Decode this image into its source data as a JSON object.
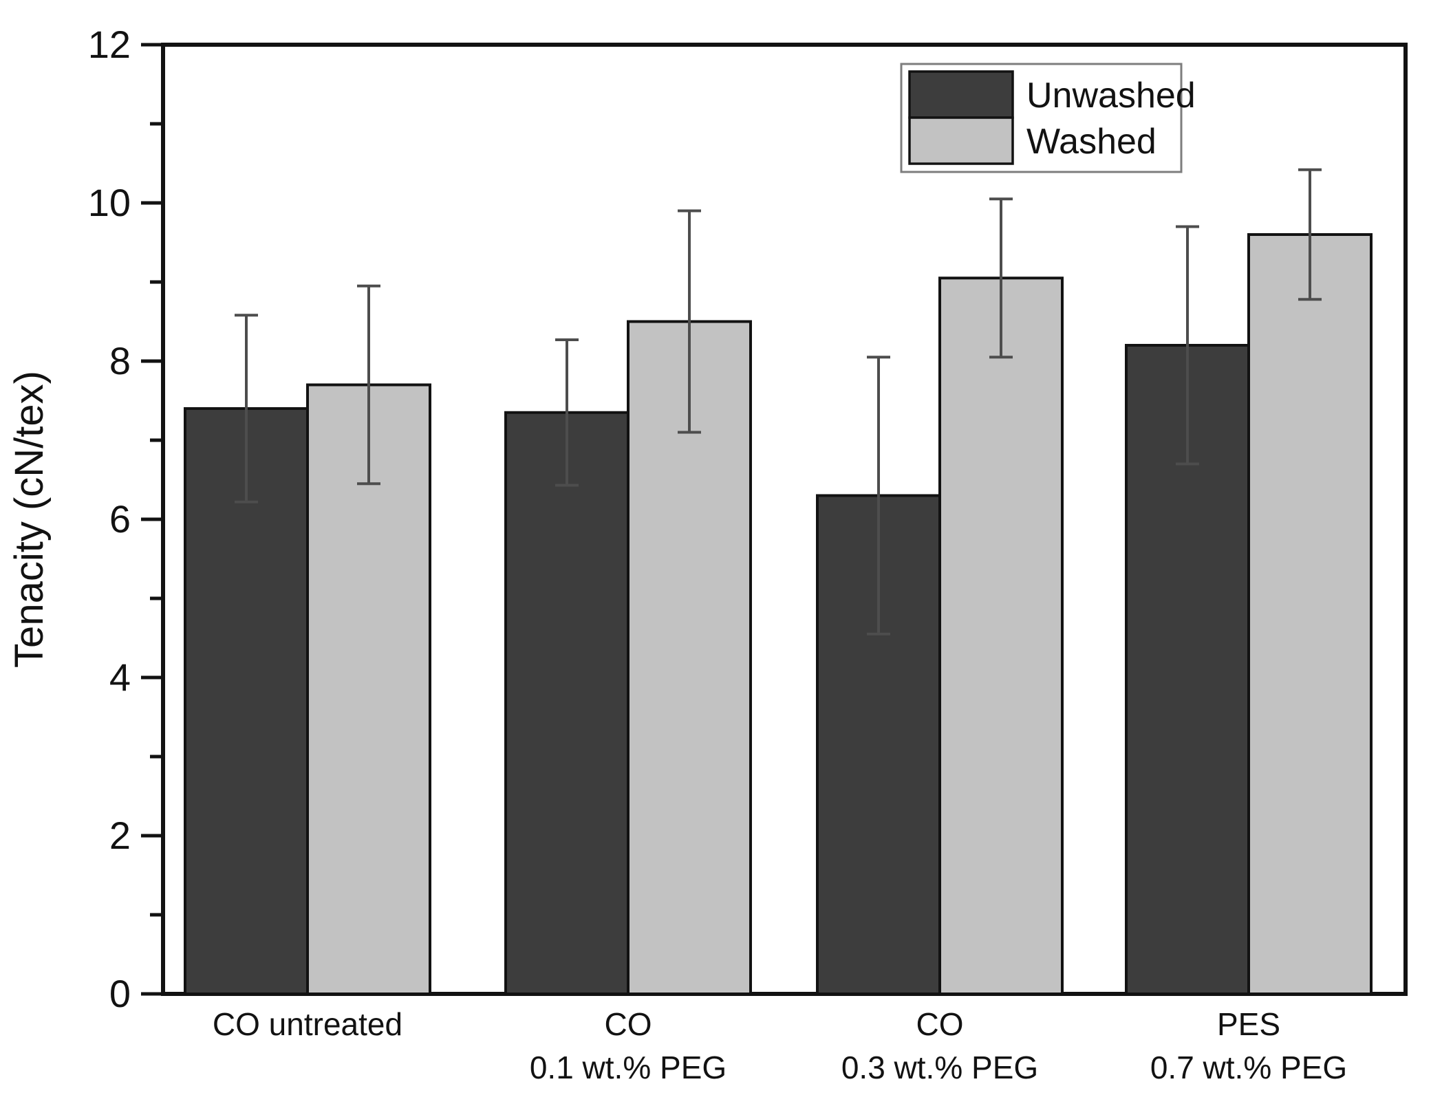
{
  "figure": {
    "background": "#ffffff",
    "frame_color": "#121212",
    "error_bar_color": "#4d4d4d",
    "text_color": "#121212"
  },
  "chart_data": {
    "type": "bar",
    "title": "",
    "xlabel": "",
    "ylabel": "Tenacity (cN/tex)",
    "ylim": [
      0,
      12
    ],
    "yticks_major": [
      0,
      2,
      4,
      6,
      8,
      10,
      12
    ],
    "yticks_minor": [
      1,
      3,
      5,
      7,
      9,
      11
    ],
    "grid": false,
    "legend_position": "top-right",
    "categories": [
      "CO untreated",
      "CO 0.1 wt.% PEG",
      "CO 0.3 wt.% PEG",
      "PES 0.7 wt.% PEG"
    ],
    "categories_lines": [
      [
        "CO untreated"
      ],
      [
        "CO",
        "0.1 wt.% PEG"
      ],
      [
        "CO",
        "0.3 wt.% PEG"
      ],
      [
        "PES",
        "0.7 wt.% PEG"
      ]
    ],
    "series": [
      {
        "name": "Unwashed",
        "color": "#3d3d3d",
        "values": [
          7.4,
          7.35,
          6.3,
          8.2
        ],
        "errors": [
          1.18,
          0.92,
          1.75,
          1.5
        ]
      },
      {
        "name": "Washed",
        "color": "#c2c2c2",
        "values": [
          7.7,
          8.5,
          9.05,
          9.6
        ],
        "errors": [
          1.25,
          1.4,
          1.0,
          0.82
        ]
      }
    ]
  }
}
